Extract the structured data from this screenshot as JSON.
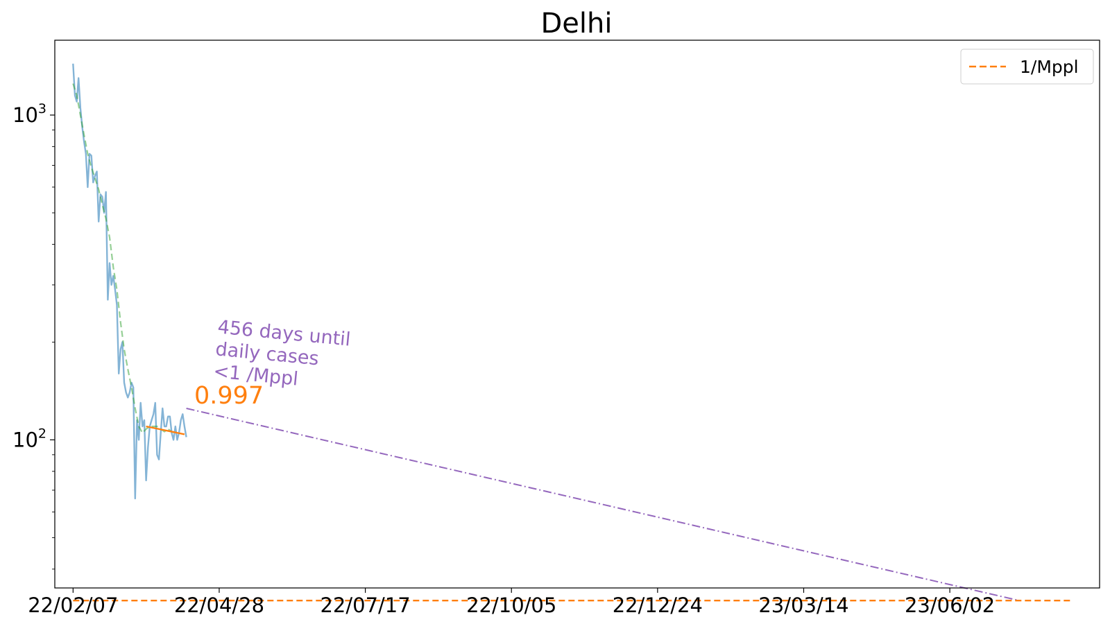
{
  "chart_data": {
    "type": "line",
    "title": "Delhi",
    "xlabel": "",
    "ylabel": "",
    "yscale": "log",
    "ylim": [
      35,
      1700
    ],
    "xlim": [
      "2022-01-28",
      "2023-08-23"
    ],
    "grid": false,
    "legend_position": "top-right",
    "x_ticks": [
      "22/02/07",
      "22/04/28",
      "22/07/17",
      "22/10/05",
      "22/12/24",
      "23/03/14",
      "23/06/02"
    ],
    "y_ticks": [
      {
        "base": "10",
        "exp": "2",
        "value": 100
      },
      {
        "base": "10",
        "exp": "3",
        "value": 1000
      }
    ],
    "series": [
      {
        "role": "daily",
        "color": "#1f77b4",
        "x": [
          "2022-02-07",
          "2022-02-08",
          "2022-02-09",
          "2022-02-10",
          "2022-02-11",
          "2022-02-12",
          "2022-02-13",
          "2022-02-14",
          "2022-02-15",
          "2022-02-16",
          "2022-02-17",
          "2022-02-18",
          "2022-02-19",
          "2022-02-20",
          "2022-02-21",
          "2022-02-22",
          "2022-02-23",
          "2022-02-24",
          "2022-02-25",
          "2022-02-26",
          "2022-02-27",
          "2022-02-28",
          "2022-03-01",
          "2022-03-02",
          "2022-03-03",
          "2022-03-04",
          "2022-03-05",
          "2022-03-06",
          "2022-03-07",
          "2022-03-08",
          "2022-03-09",
          "2022-03-10",
          "2022-03-11",
          "2022-03-12",
          "2022-03-13",
          "2022-03-14",
          "2022-03-15",
          "2022-03-16",
          "2022-03-17",
          "2022-03-18",
          "2022-03-19",
          "2022-03-20",
          "2022-03-21",
          "2022-03-22",
          "2022-03-23",
          "2022-03-24",
          "2022-03-25",
          "2022-03-26",
          "2022-03-27",
          "2022-03-28",
          "2022-03-29",
          "2022-03-30",
          "2022-03-31",
          "2022-04-01",
          "2022-04-02",
          "2022-04-03",
          "2022-04-04",
          "2022-04-05",
          "2022-04-06",
          "2022-04-07",
          "2022-04-08",
          "2022-04-09",
          "2022-04-10"
        ],
        "y": [
          1440,
          1150,
          1100,
          1300,
          1050,
          920,
          830,
          760,
          600,
          760,
          750,
          620,
          650,
          670,
          470,
          570,
          560,
          500,
          580,
          270,
          350,
          300,
          320,
          290,
          260,
          160,
          190,
          200,
          150,
          140,
          135,
          140,
          150,
          145,
          66,
          115,
          100,
          130,
          110,
          115,
          75,
          95,
          110,
          115,
          120,
          130,
          90,
          87,
          105,
          125,
          110,
          110,
          118,
          118,
          105,
          100,
          110,
          100,
          105,
          115,
          120,
          110,
          102
        ],
        "dash": "solid"
      },
      {
        "role": "smoothed",
        "color": "#2ca02c",
        "x": [
          "2022-02-07",
          "2022-02-09",
          "2022-02-11",
          "2022-02-13",
          "2022-02-15",
          "2022-02-17",
          "2022-02-19",
          "2022-02-21",
          "2022-02-23",
          "2022-02-25",
          "2022-02-27",
          "2022-03-01",
          "2022-03-03",
          "2022-03-05",
          "2022-03-07",
          "2022-03-09",
          "2022-03-11",
          "2022-03-13",
          "2022-03-15",
          "2022-03-17",
          "2022-03-19",
          "2022-03-21",
          "2022-03-23",
          "2022-03-25",
          "2022-03-27",
          "2022-03-29",
          "2022-03-31",
          "2022-04-02",
          "2022-04-04"
        ],
        "y": [
          1250,
          1150,
          1000,
          870,
          760,
          690,
          640,
          590,
          530,
          480,
          420,
          340,
          290,
          230,
          190,
          165,
          145,
          125,
          110,
          105,
          108,
          110,
          110,
          110,
          108,
          106,
          108,
          106,
          105
        ],
        "dash": "dashed"
      },
      {
        "role": "ratio-segment",
        "color": "#ff7f0e",
        "x": [
          "2022-03-19",
          "2022-04-09"
        ],
        "y": [
          110,
          104
        ]
      },
      {
        "role": "extrapolation",
        "color": "#9467bd",
        "x": [
          "2022-04-10",
          "2023-07-10"
        ],
        "y": [
          125,
          32
        ],
        "dash": "dashdot"
      },
      {
        "name": "1/Mppl",
        "color": "#ff7f0e",
        "x": [
          "2022-02-07",
          "2023-08-08"
        ],
        "y": [
          32,
          32
        ],
        "dash": "dashed"
      }
    ],
    "annotations": {
      "ratio_label": "0.997",
      "projection_lines": [
        "456 days until",
        "daily cases",
        "<1 /Mppl"
      ]
    }
  }
}
